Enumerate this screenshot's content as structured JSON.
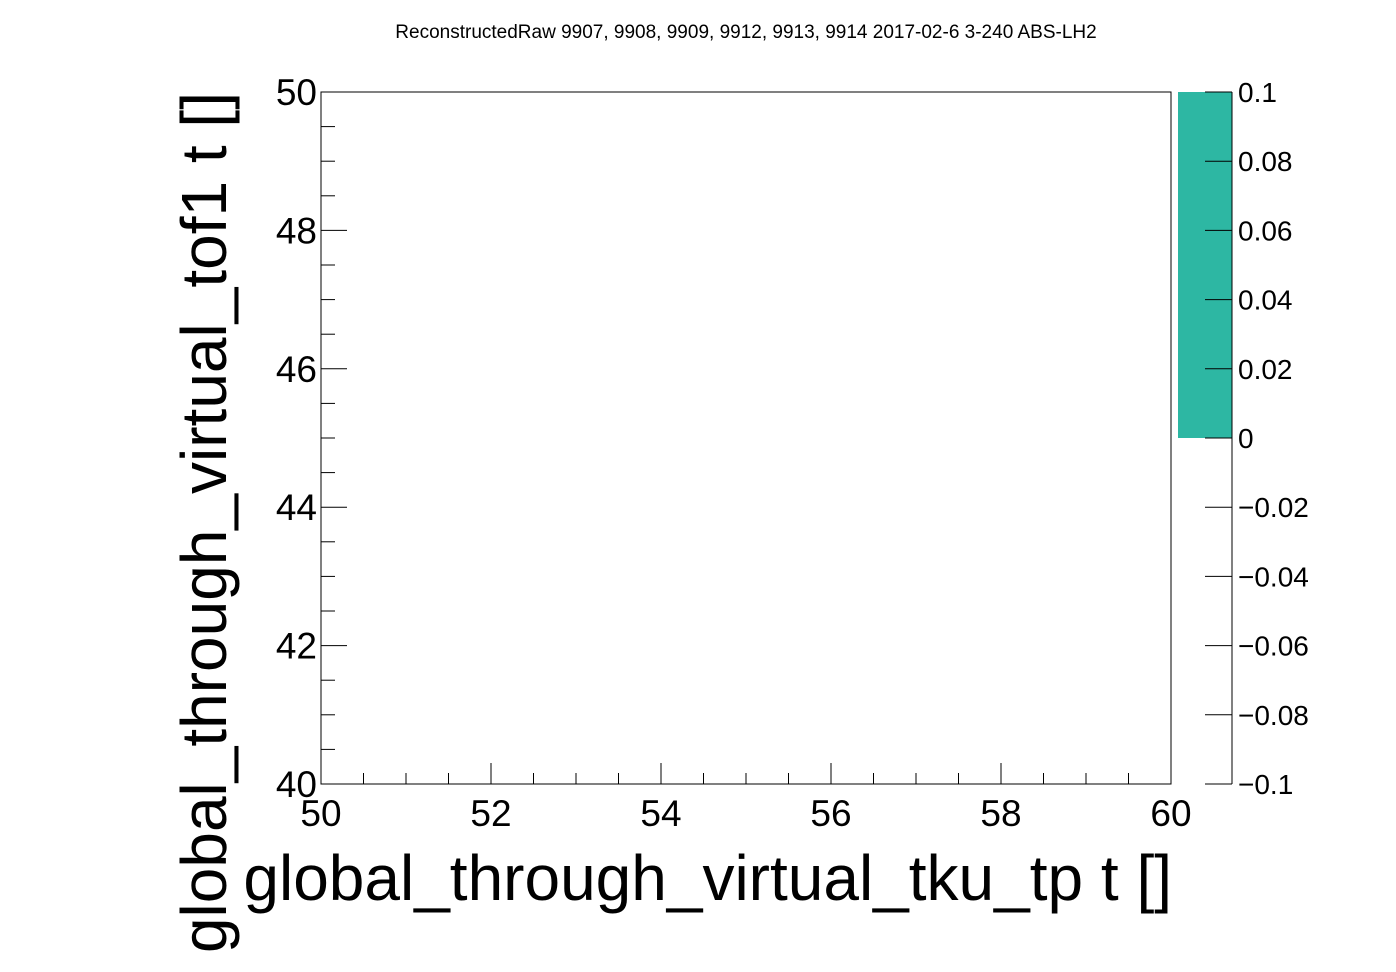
{
  "chart_data": {
    "type": "heatmap",
    "title": "ReconstructedRaw 9907, 9908, 9909, 9912, 9913, 9914 2017-02-6 3-240 ABS-LH2",
    "xlabel": "global_through_virtual_tku_tp t []",
    "ylabel": "global_through_virtual_tof1 t []",
    "xlim": [
      50,
      60
    ],
    "ylim": [
      40,
      50
    ],
    "x_tick_labels": [
      "50",
      "52",
      "54",
      "56",
      "58",
      "60"
    ],
    "y_tick_labels": [
      "40",
      "42",
      "44",
      "46",
      "48",
      "50"
    ],
    "z_range": [
      -0.1,
      0.1
    ],
    "z_tick_labels": [
      "−0.1",
      "−0.08",
      "−0.06",
      "−0.04",
      "−0.02",
      "0",
      "0.02",
      "0.04",
      "0.06",
      "0.08",
      "0.1"
    ],
    "palette_fill_range": [
      0,
      0.1
    ],
    "palette_color": "#2db7a3",
    "cells": [],
    "grid": false
  }
}
